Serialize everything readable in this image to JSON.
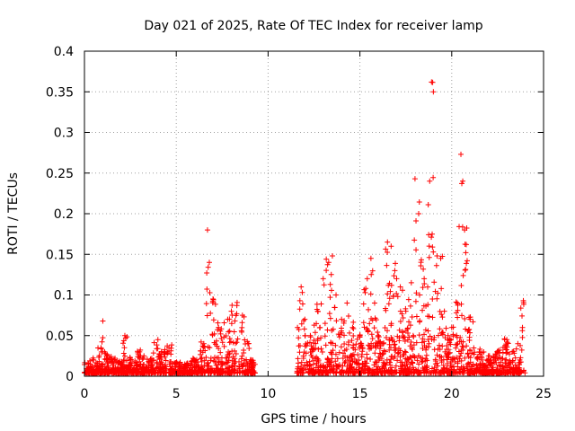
{
  "chart_data": {
    "type": "scatter",
    "title": "Day 021 of 2025, Rate Of TEC Index for receiver lamp",
    "xlabel": "GPS time / hours",
    "ylabel": "ROTI / TECUs",
    "xlim": [
      0,
      25
    ],
    "ylim": [
      0,
      0.4
    ],
    "xticks": [
      0,
      5,
      10,
      15,
      20,
      25
    ],
    "yticks": [
      0,
      0.05,
      0.1,
      0.15,
      0.2,
      0.25,
      0.3,
      0.35,
      0.4
    ],
    "xtick_labels": [
      "0",
      "5",
      "10",
      "15",
      "20",
      "25"
    ],
    "ytick_labels": [
      "0",
      "0.05",
      "0.1",
      "0.15",
      "0.2",
      "0.25",
      "0.3",
      "0.35",
      "0.4"
    ],
    "grid": true,
    "marker": "+",
    "color": "#ff0000",
    "gap": [
      9.3,
      11.5
    ],
    "series": [
      {
        "name": "ROTI",
        "x": [
          0.2,
          0.5,
          0.9,
          1.0,
          1.1,
          1.2,
          1.5,
          2.0,
          2.2,
          2.5,
          3.0,
          3.5,
          4.0,
          4.2,
          4.6,
          5.0,
          5.5,
          6.0,
          6.5,
          6.7,
          6.8,
          7.0,
          7.3,
          7.8,
          8.0,
          8.3,
          8.6,
          8.9,
          9.1,
          11.6,
          11.8,
          12.0,
          12.3,
          12.7,
          13.0,
          13.3,
          13.5,
          13.7,
          14.0,
          14.3,
          14.6,
          15.0,
          15.4,
          15.6,
          15.8,
          16.0,
          16.2,
          16.5,
          16.7,
          16.9,
          17.0,
          17.2,
          17.5,
          17.8,
          17.9,
          18.0,
          18.2,
          18.5,
          18.8,
          18.9,
          19.0,
          19.2,
          19.4,
          19.6,
          19.8,
          20.0,
          20.3,
          20.5,
          20.6,
          20.7,
          21.0,
          21.5,
          22.0,
          22.5,
          23.0,
          23.3,
          23.6,
          23.9
        ],
        "values": [
          0.015,
          0.02,
          0.035,
          0.068,
          0.03,
          0.025,
          0.02,
          0.015,
          0.05,
          0.02,
          0.03,
          0.018,
          0.045,
          0.03,
          0.035,
          0.015,
          0.012,
          0.02,
          0.04,
          0.18,
          0.14,
          0.095,
          0.06,
          0.07,
          0.08,
          0.087,
          0.075,
          0.04,
          0.02,
          0.06,
          0.11,
          0.07,
          0.05,
          0.08,
          0.12,
          0.14,
          0.148,
          0.1,
          0.07,
          0.09,
          0.06,
          0.05,
          0.12,
          0.145,
          0.09,
          0.05,
          0.04,
          0.165,
          0.16,
          0.13,
          0.12,
          0.11,
          0.08,
          0.115,
          0.05,
          0.243,
          0.2,
          0.12,
          0.24,
          0.362,
          0.35,
          0.148,
          0.145,
          0.08,
          0.05,
          0.06,
          0.09,
          0.273,
          0.24,
          0.18,
          0.07,
          0.03,
          0.025,
          0.03,
          0.045,
          0.03,
          0.04,
          0.093
        ]
      }
    ]
  }
}
